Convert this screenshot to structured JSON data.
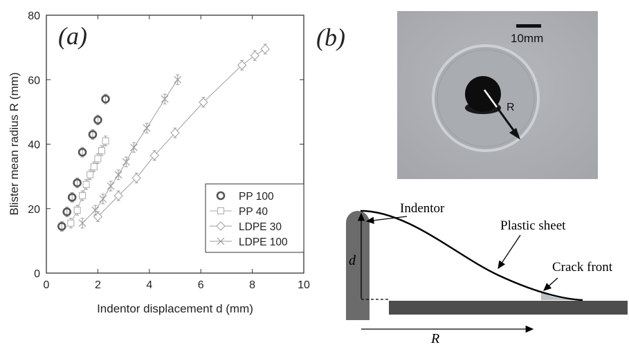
{
  "panels": {
    "a_label": "(a)",
    "b_label": "(b)"
  },
  "chart_data": {
    "type": "scatter",
    "title": "",
    "xlabel": "Indentor displacement d (mm)",
    "ylabel": "Blister mean radius R (mm)",
    "xlim": [
      0,
      10
    ],
    "ylim": [
      0,
      80
    ],
    "xticks": [
      0,
      2,
      4,
      6,
      8,
      10
    ],
    "yticks": [
      0,
      20,
      40,
      60,
      80
    ],
    "grid": false,
    "legend_position": "bottom-right",
    "series": [
      {
        "name": "PP 100",
        "marker": "circle-bold",
        "color": "#555555",
        "connected": false,
        "x": [
          0.6,
          0.8,
          1.0,
          1.2,
          1.4,
          1.8,
          2.0,
          2.3
        ],
        "y": [
          14.5,
          19,
          23.5,
          28,
          37.5,
          43,
          47.5,
          54
        ]
      },
      {
        "name": "PP 40",
        "marker": "square",
        "color": "#aaaaaa",
        "connected": true,
        "x": [
          0.95,
          1.2,
          1.4,
          1.55,
          1.7,
          1.85,
          2.0,
          2.15,
          2.3
        ],
        "y": [
          15.5,
          19.5,
          24,
          27.5,
          30.5,
          33,
          35.5,
          38,
          41
        ]
      },
      {
        "name": "LDPE 30",
        "marker": "diamond",
        "color": "#9e9e9e",
        "connected": true,
        "x": [
          2.0,
          2.8,
          3.5,
          4.2,
          5.0,
          6.1,
          7.6,
          8.1,
          8.5
        ],
        "y": [
          17.5,
          24,
          29.5,
          36.5,
          43.5,
          53,
          64.5,
          67.5,
          69.5
        ]
      },
      {
        "name": "LDPE 100",
        "marker": "cross",
        "color": "#9e9e9e",
        "connected": true,
        "x": [
          1.4,
          1.9,
          2.2,
          2.5,
          2.8,
          3.1,
          3.4,
          3.9,
          4.6,
          5.1
        ],
        "y": [
          15.5,
          19.5,
          23,
          27,
          30.5,
          34.5,
          39,
          45,
          54,
          60
        ]
      }
    ]
  },
  "photo": {
    "scale_bar_label": "10mm",
    "radius_label": "R"
  },
  "diagram": {
    "indentor_label": "Indentor",
    "sheet_label": "Plastic sheet",
    "crack_label": "Crack front",
    "d_label": "d",
    "r_label": "R"
  }
}
